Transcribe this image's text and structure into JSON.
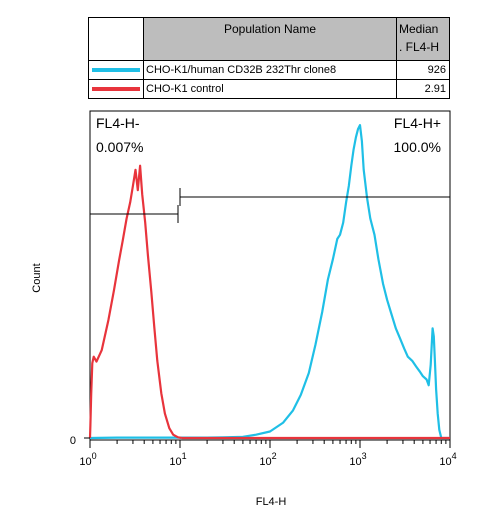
{
  "legend": {
    "header_name": "Population Name",
    "header_median_1": "Median",
    "header_median_2": ". FL4-H",
    "rows": [
      {
        "name": "CHO-K1/human CD32B 232Thr clone8",
        "median": "926",
        "color": "#1fbfe6"
      },
      {
        "name": "CHO-K1 control",
        "median": "2.91",
        "color": "#e8343c"
      }
    ]
  },
  "chart_data": {
    "type": "histogram",
    "xlabel": "FL4-H",
    "ylabel": "Count",
    "xscale": "log",
    "xlim": [
      1,
      10000
    ],
    "y_tick_label": "0",
    "x_ticks": [
      {
        "value": 1,
        "base": "10",
        "exp": "0"
      },
      {
        "value": 10,
        "base": "10",
        "exp": "1"
      },
      {
        "value": 100,
        "base": "10",
        "exp": "2"
      },
      {
        "value": 1000,
        "base": "10",
        "exp": "3"
      },
      {
        "value": 10000,
        "base": "10",
        "exp": "4"
      }
    ],
    "gates": [
      {
        "name": "FL4-H-",
        "percent": "0.007%",
        "from": 1,
        "to": 9.5
      },
      {
        "name": "FL4-H+",
        "percent": "100.0%",
        "from": 10,
        "to": 10000
      }
    ],
    "series": [
      {
        "name": "CHO-K1 control",
        "color": "#e8343c",
        "points": [
          [
            1.0,
            0
          ],
          [
            1.01,
            160
          ],
          [
            1.03,
            540
          ],
          [
            1.06,
            920
          ],
          [
            1.1,
            1000
          ],
          [
            1.18,
            940
          ],
          [
            1.35,
            1080
          ],
          [
            1.6,
            1450
          ],
          [
            1.85,
            1820
          ],
          [
            2.1,
            2180
          ],
          [
            2.3,
            2420
          ],
          [
            2.55,
            2700
          ],
          [
            2.8,
            2900
          ],
          [
            3.0,
            3100
          ],
          [
            3.2,
            3300
          ],
          [
            3.4,
            3050
          ],
          [
            3.6,
            3350
          ],
          [
            3.8,
            3000
          ],
          [
            4.1,
            2650
          ],
          [
            4.4,
            2250
          ],
          [
            4.8,
            1800
          ],
          [
            5.2,
            1350
          ],
          [
            5.6,
            950
          ],
          [
            6.2,
            550
          ],
          [
            6.8,
            300
          ],
          [
            7.6,
            120
          ],
          [
            8.4,
            40
          ],
          [
            9.5,
            8
          ],
          [
            10.5,
            0
          ]
        ]
      },
      {
        "name": "CHO-K1/human CD32B 232Thr clone8",
        "color": "#1fbfe6",
        "points": [
          [
            1.0,
            0
          ],
          [
            2,
            5
          ],
          [
            5,
            5
          ],
          [
            10,
            5
          ],
          [
            20,
            5
          ],
          [
            30,
            8
          ],
          [
            50,
            15
          ],
          [
            70,
            40
          ],
          [
            100,
            80
          ],
          [
            140,
            190
          ],
          [
            180,
            340
          ],
          [
            220,
            530
          ],
          [
            270,
            800
          ],
          [
            320,
            1150
          ],
          [
            380,
            1550
          ],
          [
            440,
            1950
          ],
          [
            500,
            2200
          ],
          [
            560,
            2450
          ],
          [
            600,
            2500
          ],
          [
            650,
            2650
          ],
          [
            700,
            2900
          ],
          [
            750,
            3100
          ],
          [
            800,
            3350
          ],
          [
            850,
            3550
          ],
          [
            900,
            3700
          ],
          [
            950,
            3800
          ],
          [
            1000,
            3850
          ],
          [
            1050,
            3650
          ],
          [
            1100,
            3300
          ],
          [
            1200,
            2950
          ],
          [
            1300,
            2700
          ],
          [
            1450,
            2500
          ],
          [
            1600,
            2200
          ],
          [
            1800,
            1900
          ],
          [
            2000,
            1700
          ],
          [
            2200,
            1550
          ],
          [
            2500,
            1350
          ],
          [
            2800,
            1220
          ],
          [
            3100,
            1100
          ],
          [
            3400,
            1000
          ],
          [
            3800,
            950
          ],
          [
            4200,
            880
          ],
          [
            4600,
            820
          ],
          [
            5000,
            760
          ],
          [
            5500,
            720
          ],
          [
            5800,
            650
          ],
          [
            6100,
            900
          ],
          [
            6400,
            1350
          ],
          [
            6600,
            1250
          ],
          [
            6800,
            950
          ],
          [
            7000,
            600
          ],
          [
            7300,
            300
          ],
          [
            7600,
            100
          ],
          [
            8000,
            0
          ]
        ]
      }
    ]
  }
}
